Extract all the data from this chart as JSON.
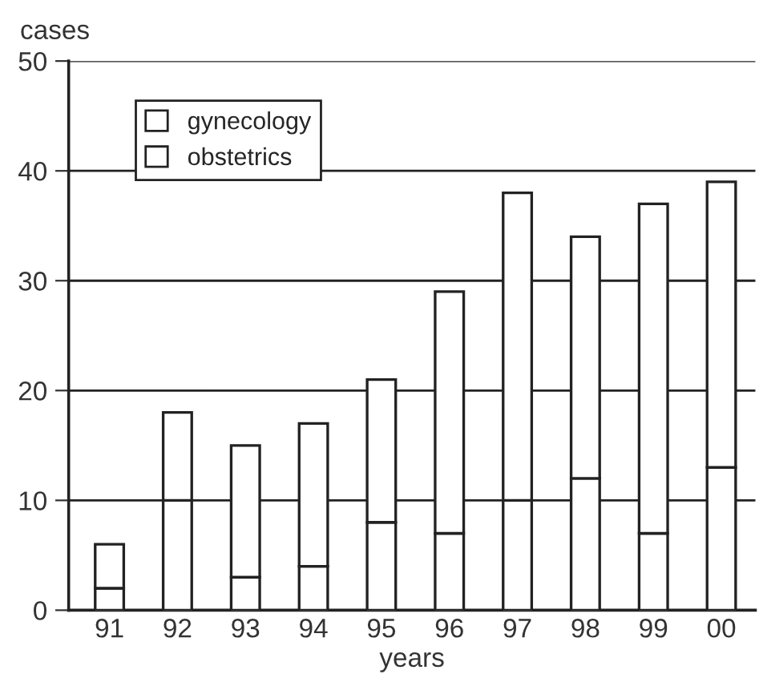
{
  "chart_data": {
    "type": "bar",
    "stacked": true,
    "xlabel": "years",
    "ylabel": "cases",
    "categories": [
      "91",
      "92",
      "93",
      "94",
      "95",
      "96",
      "97",
      "98",
      "99",
      "00"
    ],
    "series": [
      {
        "name": "obstetrics",
        "color": "#ffffff",
        "values": [
          2,
          10,
          3,
          4,
          8,
          7,
          10,
          12,
          7,
          13
        ]
      },
      {
        "name": "gynecology",
        "color": "#ffffff",
        "values": [
          4,
          8,
          12,
          13,
          13,
          22,
          28,
          22,
          30,
          26
        ]
      }
    ],
    "ylim": [
      0,
      50
    ],
    "yticks": [
      0,
      10,
      20,
      30,
      40,
      50
    ],
    "grid": "y",
    "legend": "top left"
  }
}
